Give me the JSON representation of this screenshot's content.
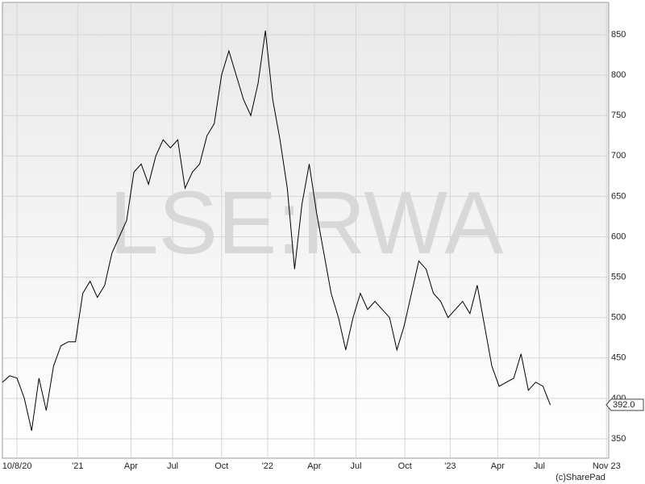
{
  "chart_data": {
    "type": "line",
    "watermark": "LSE:RWA",
    "credit": "(c)SharePad",
    "series": [
      {
        "color": "#000000",
        "values": [
          420,
          428,
          425,
          400,
          360,
          425,
          385,
          440,
          465,
          470,
          470,
          530,
          545,
          525,
          540,
          580,
          600,
          620,
          680,
          690,
          665,
          700,
          720,
          710,
          720,
          660,
          680,
          690,
          725,
          740,
          800,
          830,
          800,
          770,
          750,
          790,
          855,
          770,
          720,
          660,
          560,
          640,
          690,
          630,
          580,
          530,
          500,
          460,
          500,
          530,
          510,
          520,
          510,
          500,
          460,
          490,
          530,
          570,
          560,
          530,
          520,
          500,
          510,
          520,
          505,
          540,
          490,
          440,
          415,
          420,
          425,
          455,
          410,
          420,
          415,
          392
        ]
      }
    ],
    "last_price": {
      "value": 392,
      "label": "392.0"
    },
    "xlim": [
      0,
      83
    ],
    "xticks": [
      {
        "value": 2,
        "label": "10/8/20"
      },
      {
        "value": 10.3,
        "label": "'21"
      },
      {
        "value": 17.6,
        "label": "Apr"
      },
      {
        "value": 23.3,
        "label": "Jul"
      },
      {
        "value": 30,
        "label": "Oct"
      },
      {
        "value": 36.3,
        "label": "'22"
      },
      {
        "value": 42.7,
        "label": "Apr"
      },
      {
        "value": 48.4,
        "label": "Jul"
      },
      {
        "value": 55.1,
        "label": "Oct"
      },
      {
        "value": 61.3,
        "label": "'23"
      },
      {
        "value": 67.8,
        "label": "Apr"
      },
      {
        "value": 73.5,
        "label": "Jul"
      },
      {
        "value": 82.7,
        "label": "Nov 23"
      }
    ],
    "ylim": [
      326,
      890
    ],
    "yticks": [
      350,
      400,
      450,
      500,
      550,
      600,
      650,
      700,
      750,
      800,
      850
    ],
    "grid": true
  }
}
